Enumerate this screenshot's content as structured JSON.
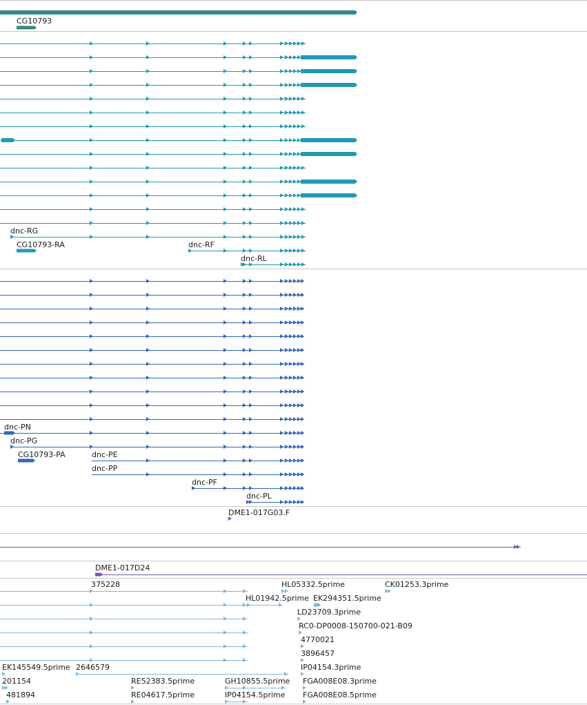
{
  "colors": {
    "gene": "#2e8b8b",
    "transcript": "#1b9cb8",
    "protein": "#2f66c4",
    "clone": "#7b52b5",
    "est": "#7fb8df",
    "separator": "#c8c8c8"
  },
  "gene_track": {
    "labels": [
      "CG10793"
    ]
  },
  "transcript_track": {
    "labels": [
      "dnc-RG",
      "CG10793-RA",
      "dnc-RF",
      "dnc-RL"
    ]
  },
  "protein_track": {
    "labels": [
      "dnc-PN",
      "dnc-PG",
      "CG10793-PA",
      "dnc-PE",
      "dnc-PP",
      "dnc-PF",
      "dnc-PL"
    ]
  },
  "clone_end_track": {
    "labels": [
      "DME1-017G03.F"
    ]
  },
  "clone_track": {
    "labels": [
      "DME1-017D24"
    ]
  },
  "est_track": {
    "labels": [
      "375228",
      "HL05332.5prime",
      "CK01253.3prime",
      "HL01942.5prime",
      "EK294351.5prime",
      "LD23709.3prime",
      "RC0-DP0008-150700-021-B09",
      "4770021",
      "3896457",
      "EK145549.5prime",
      "2646579",
      "IP04154.3prime",
      "201154",
      "RE52383.5prime",
      "GH10855.5prime",
      "FGA008E08.3prime",
      "481894",
      "RE04617.5prime",
      "IP04154.5prime",
      "FGA008E08.5prime"
    ]
  }
}
